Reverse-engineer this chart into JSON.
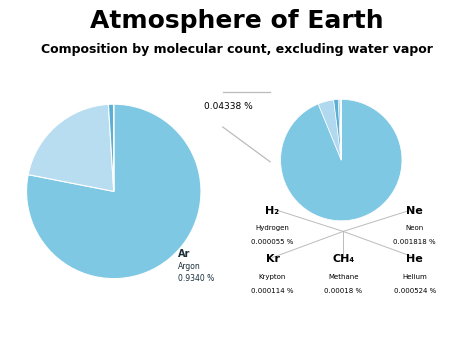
{
  "title": "Atmosphere of Earth",
  "subtitle": "Composition by molecular count, excluding water vapor",
  "bg_color": "#ffffff",
  "main_pie": {
    "values": [
      78.084,
      20.946,
      0.934,
      0.04338
    ],
    "colors": [
      "#7EC8E3",
      "#B8DCF0",
      "#5AAFD4",
      "#3A9BC8"
    ],
    "startangle": 90
  },
  "small_pie": {
    "values": [
      0.0407,
      0.001818,
      0.000524,
      0.00018,
      0.000114,
      5.5e-05
    ],
    "colors": [
      "#7EC8E3",
      "#B0D8EE",
      "#5AAFD4",
      "#3A9BC8",
      "#7EC8E3",
      "#B8DCF0"
    ],
    "startangle": 90
  },
  "connector_color": "#bbbbbb",
  "label_color": "#1a2e3a",
  "title_fontsize": 18,
  "subtitle_fontsize": 9
}
